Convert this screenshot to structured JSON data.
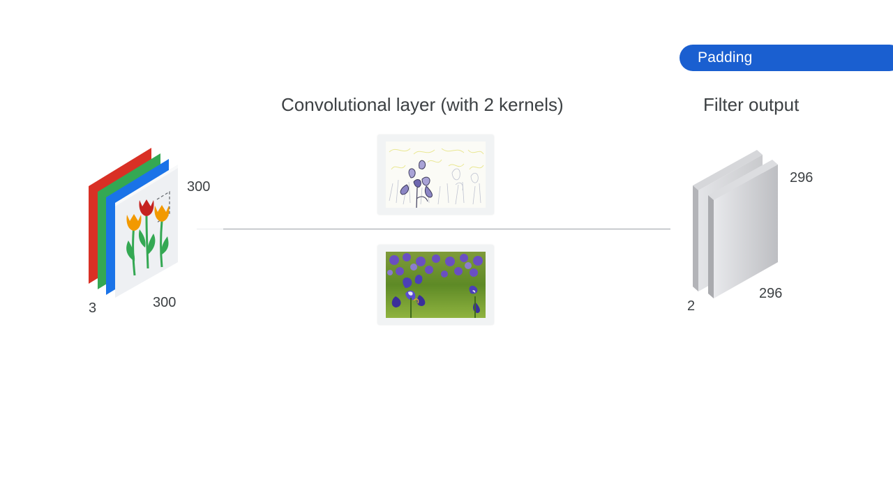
{
  "header": {
    "badge_label": "Padding"
  },
  "conv_layer": {
    "title": "Convolutional layer (with 2 kernels)"
  },
  "output": {
    "title": "Filter output",
    "width": "296",
    "height": "296",
    "depth": "2"
  },
  "input": {
    "width": "300",
    "height": "300",
    "channels": "3"
  },
  "colors": {
    "badge": "#1a5fd0",
    "red_channel": "#d93025",
    "green_channel": "#34a853",
    "blue_channel": "#1a73e8",
    "tulip_orange": "#f29900",
    "tulip_red": "#c5221f",
    "flow_line": "#9aa0a6"
  },
  "icons": {
    "input_stack": "rgb-channel-stack-icon",
    "kernel_1": "edge-filtered-iris-image",
    "kernel_2": "iris-photo-image",
    "output_stack": "feature-map-stack-icon"
  }
}
